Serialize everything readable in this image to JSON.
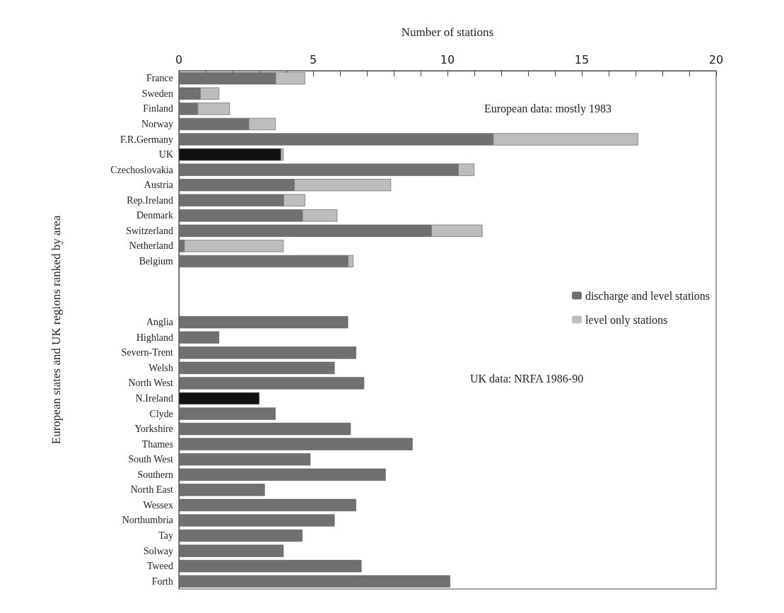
{
  "chart_data": {
    "type": "bar",
    "orientation": "horizontal",
    "stacked": true,
    "xlabel": "Number of stations",
    "ylabel": "European states and UK regions ranked by area",
    "categories": [
      "France",
      "Sweden",
      "Finland",
      "Norway",
      "F.R.Germany",
      "UK",
      "Czechoslovakia",
      "Austria",
      "Rep.Ireland",
      "Denmark",
      "Switzerland",
      "Netherland",
      "Belgium",
      null,
      null,
      null,
      "Anglia",
      "Highland",
      "Severn-Trent",
      "Welsh",
      "North West",
      "N.Ireland",
      "Clyde",
      "Yorkshire",
      "Thames",
      "South West",
      "Southern",
      "North East",
      "Wessex",
      "Northumbria",
      "Tay",
      "Solway",
      "Tweed",
      "Forth"
    ],
    "series": [
      {
        "name": "discharge and level stations",
        "color": "#707070",
        "colors": [
          "#707070",
          "#707070",
          "#707070",
          "#707070",
          "#707070",
          "#111111",
          "#707070",
          "#707070",
          "#707070",
          "#707070",
          "#707070",
          "#707070",
          "#707070",
          "#707070",
          "#707070",
          "#707070",
          "#707070",
          "#707070",
          "#707070",
          "#707070",
          "#707070",
          "#111111",
          "#707070",
          "#707070",
          "#707070",
          "#707070",
          "#707070",
          "#707070",
          "#707070",
          "#707070",
          "#707070",
          "#707070",
          "#707070",
          "#707070"
        ],
        "values": [
          3.6,
          0.8,
          0.7,
          2.6,
          11.7,
          3.8,
          10.4,
          4.3,
          3.9,
          4.6,
          9.4,
          0.2,
          6.3,
          null,
          null,
          null,
          6.3,
          1.5,
          6.6,
          5.8,
          6.9,
          3.0,
          3.6,
          6.4,
          8.7,
          4.9,
          7.7,
          3.2,
          6.6,
          5.8,
          4.6,
          3.9,
          6.8,
          10.1
        ]
      },
      {
        "name": "level only stations",
        "color": "#bdbdbd",
        "values": [
          1.1,
          0.7,
          1.2,
          1.0,
          5.4,
          0.1,
          0.6,
          3.6,
          0.8,
          1.3,
          1.9,
          3.7,
          0.2,
          null,
          null,
          null,
          null,
          null,
          null,
          null,
          null,
          null,
          null,
          null,
          null,
          null,
          null,
          null,
          null,
          null,
          null,
          null,
          null,
          null
        ]
      }
    ],
    "xlim": [
      0,
      20
    ],
    "xticks": [
      0,
      {
        "value": 1,
        "label": null
      },
      {
        "value": 2,
        "label": null
      },
      {
        "value": 3,
        "label": null
      },
      {
        "value": 4,
        "label": null
      },
      5,
      {
        "value": 6,
        "label": null
      },
      {
        "value": 7,
        "label": null
      },
      {
        "value": 8,
        "label": null
      },
      {
        "value": 9,
        "label": null
      },
      10,
      {
        "value": 11,
        "label": null
      },
      {
        "value": 12,
        "label": null
      },
      {
        "value": 13,
        "label": null
      },
      {
        "value": 14,
        "label": null
      },
      15,
      {
        "value": 16,
        "label": null
      },
      {
        "value": 17,
        "label": null
      },
      {
        "value": 18,
        "label": null
      },
      {
        "value": 19,
        "label": null
      },
      20
    ],
    "legend": "center right",
    "annotations": [
      "European data: mostly 1983",
      "UK data: NRFA 1986-90"
    ]
  }
}
